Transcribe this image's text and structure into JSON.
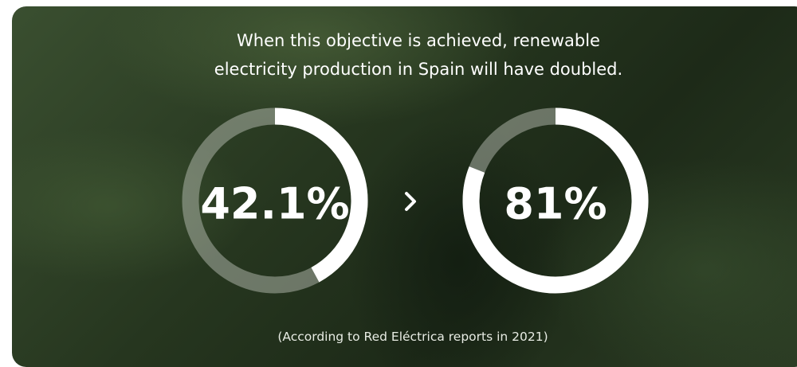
{
  "heading": [
    "When this objective is achieved, renewable",
    "electricity production in Spain will have doubled."
  ],
  "gauges": [
    {
      "value": 42.1,
      "label": "42.1%"
    },
    {
      "value": 81,
      "label": "81%"
    }
  ],
  "footnote": "(According to Red Eléctrica reports in 2021)"
}
